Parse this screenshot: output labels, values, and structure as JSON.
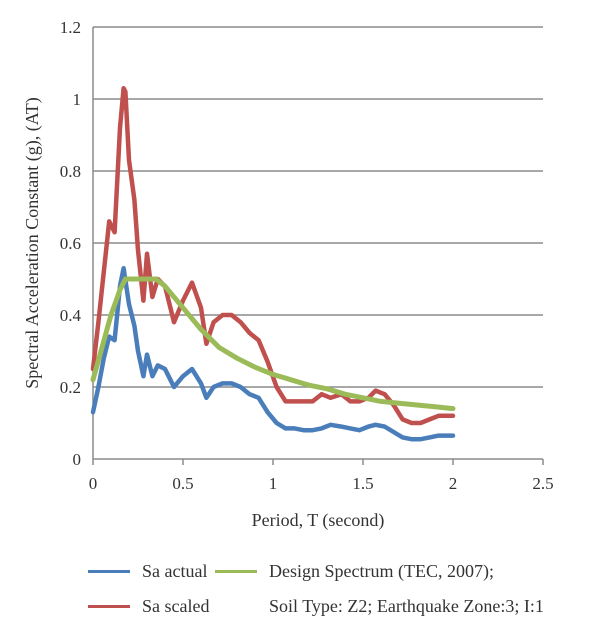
{
  "chart_data": {
    "type": "line",
    "title": "",
    "xlabel": "Period, T (second)",
    "ylabel": "Spectral Acceleration Constant (g), (AT)",
    "xlim": [
      0,
      2.5
    ],
    "ylim": [
      0,
      1.2
    ],
    "xticks": [
      "0",
      "0.5",
      "1",
      "1.5",
      "2",
      "2.5"
    ],
    "yticks": [
      "0",
      "0.2",
      "0.4",
      "0.6",
      "0.8",
      "1",
      "1.2"
    ],
    "grid": "horizontal",
    "legend_position": "bottom",
    "series": [
      {
        "name": "Sa actual",
        "color": "#4a7ebb",
        "x": [
          0,
          0.03,
          0.06,
          0.09,
          0.12,
          0.15,
          0.17,
          0.2,
          0.23,
          0.25,
          0.28,
          0.3,
          0.33,
          0.36,
          0.4,
          0.45,
          0.5,
          0.55,
          0.6,
          0.63,
          0.67,
          0.72,
          0.77,
          0.82,
          0.87,
          0.92,
          0.97,
          1.02,
          1.07,
          1.12,
          1.17,
          1.22,
          1.27,
          1.32,
          1.38,
          1.43,
          1.48,
          1.53,
          1.57,
          1.62,
          1.67,
          1.72,
          1.77,
          1.82,
          1.87,
          1.92,
          1.97,
          2.0
        ],
        "values": [
          0.13,
          0.2,
          0.28,
          0.34,
          0.33,
          0.48,
          0.53,
          0.43,
          0.37,
          0.3,
          0.23,
          0.29,
          0.23,
          0.26,
          0.25,
          0.2,
          0.23,
          0.25,
          0.21,
          0.17,
          0.2,
          0.21,
          0.21,
          0.2,
          0.18,
          0.17,
          0.13,
          0.1,
          0.085,
          0.085,
          0.08,
          0.08,
          0.085,
          0.095,
          0.09,
          0.085,
          0.08,
          0.09,
          0.095,
          0.09,
          0.075,
          0.06,
          0.055,
          0.055,
          0.06,
          0.065,
          0.065,
          0.065
        ]
      },
      {
        "name": "Sa scaled",
        "color": "#c0504d",
        "x": [
          0,
          0.03,
          0.06,
          0.09,
          0.12,
          0.15,
          0.17,
          0.18,
          0.2,
          0.23,
          0.25,
          0.28,
          0.3,
          0.33,
          0.36,
          0.4,
          0.45,
          0.5,
          0.55,
          0.6,
          0.63,
          0.67,
          0.72,
          0.77,
          0.82,
          0.87,
          0.92,
          0.97,
          1.02,
          1.07,
          1.12,
          1.17,
          1.22,
          1.27,
          1.32,
          1.38,
          1.43,
          1.48,
          1.53,
          1.57,
          1.62,
          1.67,
          1.72,
          1.77,
          1.82,
          1.87,
          1.92,
          1.97,
          2.0
        ],
        "values": [
          0.25,
          0.38,
          0.52,
          0.66,
          0.63,
          0.92,
          1.03,
          1.02,
          0.83,
          0.72,
          0.58,
          0.44,
          0.57,
          0.45,
          0.5,
          0.48,
          0.38,
          0.44,
          0.49,
          0.42,
          0.32,
          0.38,
          0.4,
          0.4,
          0.38,
          0.35,
          0.33,
          0.27,
          0.2,
          0.16,
          0.16,
          0.16,
          0.16,
          0.18,
          0.17,
          0.18,
          0.16,
          0.16,
          0.17,
          0.19,
          0.18,
          0.15,
          0.11,
          0.1,
          0.1,
          0.11,
          0.12,
          0.12,
          0.12
        ]
      },
      {
        "name": "Design Spectrum (TEC, 2007);",
        "color": "#9bbb59",
        "x": [
          0,
          0.05,
          0.1,
          0.15,
          0.18,
          0.2,
          0.25,
          0.3,
          0.35,
          0.4,
          0.5,
          0.6,
          0.7,
          0.8,
          0.9,
          1.0,
          1.1,
          1.2,
          1.3,
          1.4,
          1.5,
          1.6,
          1.7,
          1.8,
          1.9,
          2.0
        ],
        "values": [
          0.22,
          0.31,
          0.4,
          0.47,
          0.5,
          0.5,
          0.5,
          0.5,
          0.5,
          0.48,
          0.42,
          0.36,
          0.31,
          0.28,
          0.255,
          0.235,
          0.22,
          0.205,
          0.195,
          0.18,
          0.17,
          0.16,
          0.155,
          0.15,
          0.145,
          0.14
        ]
      }
    ]
  },
  "legend": {
    "items": [
      {
        "label": "Sa actual",
        "color": "#4a7ebb"
      },
      {
        "label": "Sa scaled",
        "color": "#c0504d"
      },
      {
        "label": "Design Spectrum (TEC, 2007);",
        "color": "#9bbb59"
      }
    ],
    "note": "Soil Type: Z2; Earthquake Zone:3; I:1"
  }
}
